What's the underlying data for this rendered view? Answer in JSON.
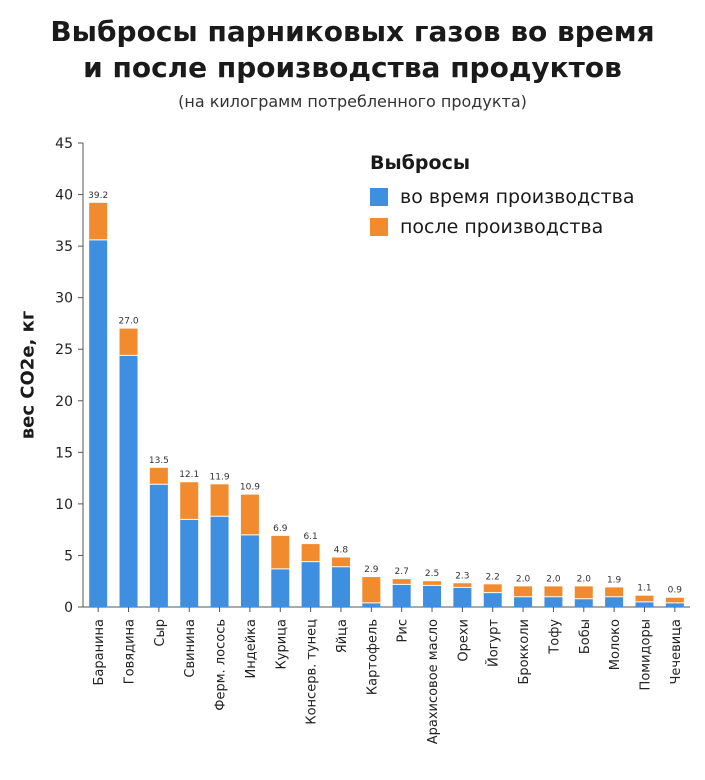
{
  "chart_data": {
    "type": "bar",
    "stacked": true,
    "title": "Выбросы парниковых газов во время и после производства продуктов",
    "title_lines": [
      "Выбросы парниковых газов во время",
      "и после производства продуктов"
    ],
    "subtitle": "(на килограмм потребленного продукта)",
    "xlabel": "",
    "ylabel": "вес CO2e, кг",
    "ylim": [
      0,
      45
    ],
    "yticks": [
      0,
      5,
      10,
      15,
      20,
      25,
      30,
      35,
      40,
      45
    ],
    "legend_title": "Выбросы",
    "legend_position": "top-right",
    "categories": [
      "Баранина",
      "Говядина",
      "Сыр",
      "Свинина",
      "Ферм. лосось",
      "Индейка",
      "Курица",
      "Консерв. тунец",
      "Яйца",
      "Картофель",
      "Рис",
      "Арахисовое масло",
      "Орехи",
      "Йогурт",
      "Брокколи",
      "Тофу",
      "Бобы",
      "Молоко",
      "Помидоры",
      "Чечевица"
    ],
    "series": [
      {
        "name": "во время производства",
        "color": "#3f8fe0",
        "values": [
          35.6,
          24.4,
          11.9,
          8.5,
          8.8,
          7.0,
          3.7,
          4.4,
          3.9,
          0.4,
          2.2,
          2.1,
          1.9,
          1.4,
          1.0,
          1.0,
          0.8,
          1.0,
          0.5,
          0.4
        ]
      },
      {
        "name": "после производства",
        "color": "#f28a2e",
        "values": [
          3.6,
          2.6,
          1.6,
          3.6,
          3.1,
          3.9,
          3.2,
          1.7,
          0.9,
          2.5,
          0.5,
          0.4,
          0.4,
          0.8,
          1.0,
          1.0,
          1.2,
          0.9,
          0.6,
          0.5
        ]
      }
    ],
    "totals": [
      "39.2",
      "27.0",
      "13.5",
      "12.1",
      "11.9",
      "10.9",
      "6.9",
      "6.1",
      "4.8",
      "2.9",
      "2.7",
      "2.5",
      "2.3",
      "2.2",
      "2.0",
      "2.0",
      "2.0",
      "1.9",
      "1.1",
      "0.9"
    ],
    "grid": false
  }
}
